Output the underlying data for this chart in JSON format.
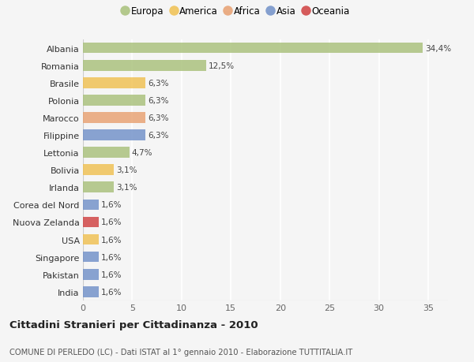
{
  "categories": [
    "Albania",
    "Romania",
    "Brasile",
    "Polonia",
    "Marocco",
    "Filippine",
    "Lettonia",
    "Bolivia",
    "Irlanda",
    "Corea del Nord",
    "Nuova Zelanda",
    "USA",
    "Singapore",
    "Pakistan",
    "India"
  ],
  "values": [
    34.4,
    12.5,
    6.3,
    6.3,
    6.3,
    6.3,
    4.7,
    3.1,
    3.1,
    1.6,
    1.6,
    1.6,
    1.6,
    1.6,
    1.6
  ],
  "labels": [
    "34,4%",
    "12,5%",
    "6,3%",
    "6,3%",
    "6,3%",
    "6,3%",
    "4,7%",
    "3,1%",
    "3,1%",
    "1,6%",
    "1,6%",
    "1,6%",
    "1,6%",
    "1,6%",
    "1,6%"
  ],
  "colors": [
    "#a8c07a",
    "#a8c07a",
    "#f0c050",
    "#a8c07a",
    "#e8a070",
    "#7090c8",
    "#a8c07a",
    "#f0c050",
    "#a8c07a",
    "#7090c8",
    "#d04040",
    "#f0c050",
    "#7090c8",
    "#7090c8",
    "#7090c8"
  ],
  "legend": [
    {
      "label": "Europa",
      "color": "#a8c07a"
    },
    {
      "label": "America",
      "color": "#f0c050"
    },
    {
      "label": "Africa",
      "color": "#e8a070"
    },
    {
      "label": "Asia",
      "color": "#7090c8"
    },
    {
      "label": "Oceania",
      "color": "#d04040"
    }
  ],
  "xlim": [
    0,
    37
  ],
  "xticks": [
    0,
    5,
    10,
    15,
    20,
    25,
    30,
    35
  ],
  "title": "Cittadini Stranieri per Cittadinanza - 2010",
  "subtitle": "COMUNE DI PERLEDO (LC) - Dati ISTAT al 1° gennaio 2010 - Elaborazione TUTTITALIA.IT",
  "background_color": "#f5f5f5",
  "grid_color": "#ffffff"
}
